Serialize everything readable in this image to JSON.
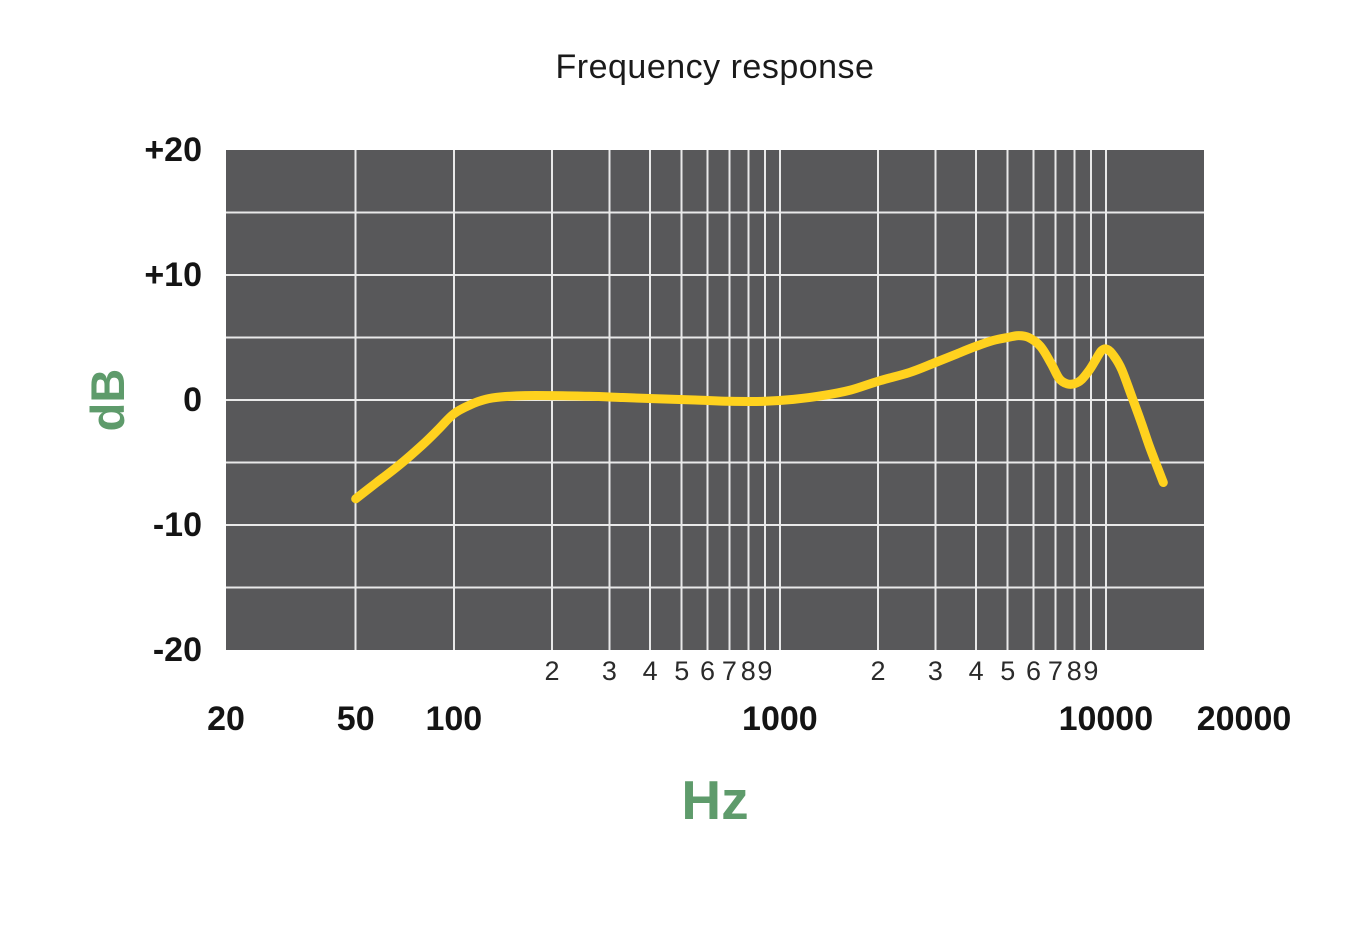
{
  "chart_data": {
    "type": "line",
    "title": "Frequency response",
    "xlabel": "Hz",
    "ylabel": "dB",
    "x_scale": "log",
    "xlim": [
      20,
      20000
    ],
    "ylim": [
      -20,
      20
    ],
    "grid": "on",
    "y_gridlines": [
      -15,
      -10,
      -5,
      0,
      5,
      10,
      15
    ],
    "x_gridlines": [
      50,
      100,
      200,
      300,
      400,
      500,
      600,
      700,
      800,
      900,
      1000,
      2000,
      3000,
      4000,
      5000,
      6000,
      7000,
      8000,
      9000,
      10000
    ],
    "y_ticks": [
      {
        "label": "+20",
        "value": 20
      },
      {
        "label": "+10",
        "value": 10
      },
      {
        "label": "0",
        "value": 0
      },
      {
        "label": "-10",
        "value": -10
      },
      {
        "label": "-20",
        "value": -20
      }
    ],
    "x_major_ticks": [
      {
        "label": "20",
        "value": 20
      },
      {
        "label": "50",
        "value": 50
      },
      {
        "label": "100",
        "value": 100
      },
      {
        "label": "1000",
        "value": 1000
      },
      {
        "label": "10000",
        "value": 10000
      },
      {
        "label": "20000",
        "value": 20000
      }
    ],
    "x_minor_ticks": [
      {
        "label": "2",
        "value": 200
      },
      {
        "label": "3",
        "value": 300
      },
      {
        "label": "4",
        "value": 400
      },
      {
        "label": "5",
        "value": 500
      },
      {
        "label": "6",
        "value": 600
      },
      {
        "label": "7",
        "value": 700
      },
      {
        "label": "8",
        "value": 800
      },
      {
        "label": "9",
        "value": 900
      },
      {
        "label": "2",
        "value": 2000
      },
      {
        "label": "3",
        "value": 3000
      },
      {
        "label": "4",
        "value": 4000
      },
      {
        "label": "5",
        "value": 5000
      },
      {
        "label": "6",
        "value": 6000
      },
      {
        "label": "7",
        "value": 7000
      },
      {
        "label": "8",
        "value": 8000
      },
      {
        "label": "9",
        "value": 9000
      }
    ],
    "series": [
      {
        "name": "frequency-response-curve",
        "color": "#FFD21E",
        "points": [
          [
            50,
            -7.9
          ],
          [
            58,
            -6.6
          ],
          [
            68,
            -5.2
          ],
          [
            80,
            -3.6
          ],
          [
            90,
            -2.3
          ],
          [
            100,
            -1.1
          ],
          [
            112,
            -0.4
          ],
          [
            125,
            0.05
          ],
          [
            140,
            0.25
          ],
          [
            165,
            0.35
          ],
          [
            200,
            0.35
          ],
          [
            260,
            0.3
          ],
          [
            330,
            0.2
          ],
          [
            420,
            0.1
          ],
          [
            550,
            0
          ],
          [
            700,
            -0.1
          ],
          [
            900,
            -0.1
          ],
          [
            1100,
            0.05
          ],
          [
            1350,
            0.35
          ],
          [
            1650,
            0.8
          ],
          [
            2000,
            1.5
          ],
          [
            2500,
            2.2
          ],
          [
            3000,
            3.0
          ],
          [
            3500,
            3.7
          ],
          [
            4000,
            4.3
          ],
          [
            4500,
            4.75
          ],
          [
            5000,
            5.0
          ],
          [
            5400,
            5.15
          ],
          [
            5800,
            5.0
          ],
          [
            6300,
            4.3
          ],
          [
            6800,
            2.9
          ],
          [
            7200,
            1.7
          ],
          [
            7600,
            1.3
          ],
          [
            8000,
            1.3
          ],
          [
            8400,
            1.6
          ],
          [
            8900,
            2.4
          ],
          [
            9300,
            3.2
          ],
          [
            9700,
            3.95
          ],
          [
            10100,
            4.05
          ],
          [
            10600,
            3.5
          ],
          [
            11200,
            2.4
          ],
          [
            12000,
            0.3
          ],
          [
            12800,
            -1.7
          ],
          [
            13600,
            -3.7
          ],
          [
            14400,
            -5.4
          ],
          [
            15000,
            -6.6
          ]
        ]
      }
    ],
    "colors": {
      "background": "#ffffff",
      "plot_background": "#58585A",
      "grid": "#E9E9E9",
      "curve": "#FFD21E",
      "accent_green": "#5E9B6B",
      "text": "#1A1A1A",
      "minor_text": "#2B2B2B"
    }
  }
}
